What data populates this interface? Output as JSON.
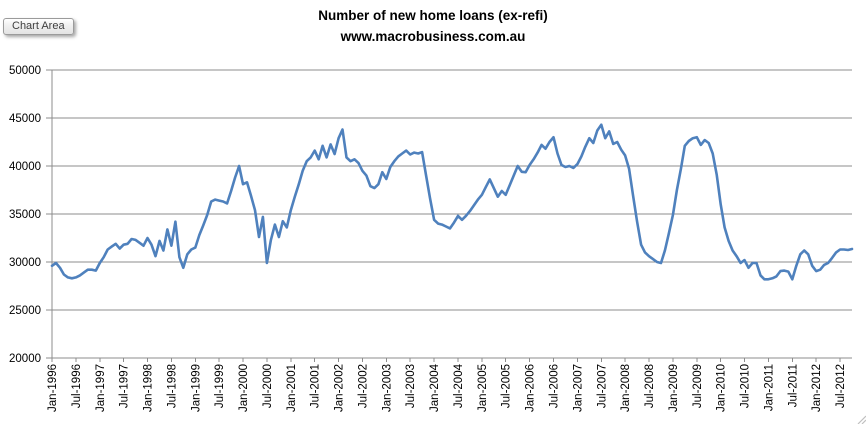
{
  "window": {
    "tooltip_label": "Chart Area"
  },
  "chart_data": {
    "type": "line",
    "title": "Number of new home loans (ex-refi)",
    "subtitle": "www.macrobusiness.com.au",
    "legend": "none",
    "grid": true,
    "ylim": [
      20000,
      50000
    ],
    "y_tick_step": 5000,
    "y_tick_labels": [
      "20000",
      "25000",
      "30000",
      "35000",
      "40000",
      "45000",
      "50000"
    ],
    "x_label_interval_months": 6,
    "x_tick_labels": [
      "Jan-1996",
      "Jul-1996",
      "Jan-1997",
      "Jul-1997",
      "Jan-1998",
      "Jul-1998",
      "Jan-1999",
      "Jul-1999",
      "Jan-2000",
      "Jul-2000",
      "Jan-2001",
      "Jul-2001",
      "Jan-2002",
      "Jul-2002",
      "Jan-2003",
      "Jul-2003",
      "Jan-2004",
      "Jul-2004",
      "Jan-2005",
      "Jul-2005",
      "Jan-2006",
      "Jul-2006",
      "Jan-2007",
      "Jul-2007",
      "Jan-2008",
      "Jul-2008",
      "Jan-2009",
      "Jul-2009",
      "Jan-2010",
      "Jul-2010",
      "Jan-2011",
      "Jul-2011",
      "Jan-2012",
      "Jul-2012"
    ],
    "x_range": "Jan-1996 to Oct-2012 (monthly)",
    "line_color": "#4F81BD",
    "gridline_color": "#8C8C8C",
    "axis_text_color": "#000000",
    "series": [
      {
        "name": "Number of new home loans (ex-refi)",
        "values": [
          29600,
          29900,
          29400,
          28700,
          28400,
          28300,
          28400,
          28600,
          28900,
          29200,
          29200,
          29100,
          29900,
          30500,
          31300,
          31600,
          31900,
          31400,
          31800,
          31900,
          32400,
          32300,
          32000,
          31700,
          32500,
          31800,
          30600,
          32200,
          31200,
          33400,
          31700,
          34200,
          30500,
          29400,
          30800,
          31300,
          31500,
          32800,
          33800,
          34900,
          36300,
          36500,
          36400,
          36300,
          36100,
          37400,
          38800,
          40000,
          38100,
          38300,
          36900,
          35400,
          32600,
          34700,
          29900,
          32300,
          33900,
          32600,
          34250,
          33600,
          35400,
          36800,
          38100,
          39500,
          40500,
          40900,
          41600,
          40700,
          42100,
          40900,
          42250,
          41250,
          42900,
          43800,
          40900,
          40500,
          40700,
          40300,
          39500,
          39000,
          37900,
          37700,
          38100,
          39350,
          38650,
          39900,
          40500,
          41000,
          41300,
          41600,
          41200,
          41400,
          41300,
          41450,
          39000,
          36600,
          34400,
          34000,
          33900,
          33700,
          33500,
          34100,
          34800,
          34400,
          34800,
          35300,
          35900,
          36500,
          37000,
          37800,
          38600,
          37700,
          36800,
          37400,
          37000,
          38000,
          39000,
          40000,
          39400,
          39350,
          40100,
          40700,
          41400,
          42200,
          41800,
          42500,
          43000,
          41300,
          40100,
          39900,
          40000,
          39800,
          40200,
          41000,
          42000,
          42900,
          42400,
          43700,
          44300,
          42900,
          43600,
          42300,
          42500,
          41700,
          41100,
          39700,
          36900,
          34200,
          31800,
          31000,
          30600,
          30300,
          30000,
          29900,
          31200,
          33000,
          34900,
          37500,
          39700,
          42100,
          42600,
          42900,
          43000,
          42200,
          42700,
          42400,
          41300,
          39100,
          36000,
          33600,
          32200,
          31200,
          30600,
          29900,
          30200,
          29400,
          29900,
          29900,
          28600,
          28200,
          28200,
          28300,
          28500,
          29050,
          29100,
          29000,
          28200,
          29600,
          30800,
          31200,
          30800,
          29600,
          29050,
          29200,
          29700,
          29900,
          30430,
          31000,
          31300,
          31300,
          31250,
          31350
        ]
      }
    ]
  }
}
